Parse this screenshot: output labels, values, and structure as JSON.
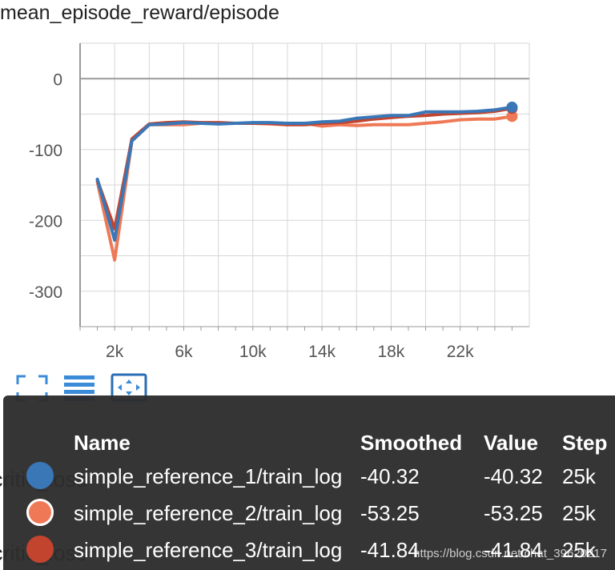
{
  "chart_data": {
    "type": "line",
    "title": "mean_episode_reward/episode",
    "xlim": [
      0,
      26000
    ],
    "ylim": [
      -350,
      50
    ],
    "x_ticks": [
      2000,
      6000,
      10000,
      14000,
      18000,
      22000
    ],
    "x_tick_labels": [
      "2k",
      "6k",
      "10k",
      "14k",
      "18k",
      "22k"
    ],
    "y_ticks": [
      0,
      -100,
      -200,
      -300
    ],
    "y_tick_labels": [
      "0",
      "-100",
      "-200",
      "-300"
    ],
    "grid": true,
    "x": [
      1000,
      2000,
      3000,
      4000,
      5000,
      6000,
      7000,
      8000,
      9000,
      10000,
      11000,
      12000,
      13000,
      14000,
      15000,
      16000,
      17000,
      18000,
      19000,
      20000,
      21000,
      22000,
      23000,
      24000,
      25000
    ],
    "series": [
      {
        "name": "simple_reference_1/train_log",
        "color": "#3a77b7",
        "values": [
          -142,
          -228,
          -88,
          -65,
          -64,
          -62,
          -63,
          -64,
          -63,
          -62,
          -62,
          -63,
          -63,
          -61,
          -60,
          -56,
          -54,
          -52,
          -52,
          -47,
          -47,
          -47,
          -46,
          -44,
          -40.32
        ]
      },
      {
        "name": "simple_reference_2/train_log",
        "color": "#ef7956",
        "values": [
          -146,
          -256,
          -88,
          -65,
          -65,
          -65,
          -63,
          -63,
          -63,
          -63,
          -64,
          -65,
          -63,
          -67,
          -65,
          -66,
          -65,
          -65,
          -65,
          -63,
          -61,
          -58,
          -57,
          -57,
          -53.25
        ]
      },
      {
        "name": "simple_reference_3/train_log",
        "color": "#c3442e",
        "values": [
          -143,
          -212,
          -85,
          -64,
          -62,
          -61,
          -62,
          -62,
          -63,
          -63,
          -63,
          -65,
          -65,
          -63,
          -62,
          -60,
          -57,
          -55,
          -53,
          -52,
          -50,
          -49,
          -48,
          -46,
          -41.84
        ]
      }
    ]
  },
  "toolbar": {
    "buttons": [
      {
        "icon": "fullscreen-icon"
      },
      {
        "icon": "data-table-icon"
      },
      {
        "icon": "fit-domain-icon"
      }
    ]
  },
  "background_labels": [
    "critic_loss",
    "critic_loss"
  ],
  "tooltip": {
    "headers": {
      "name": "Name",
      "smoothed": "Smoothed",
      "value": "Value",
      "step": "Step"
    },
    "rows": [
      {
        "name": "simple_reference_1/train_log",
        "smoothed": "-40.32",
        "value": "-40.32",
        "step": "25k",
        "color": "#3a77b7",
        "ring": false
      },
      {
        "name": "simple_reference_2/train_log",
        "smoothed": "-53.25",
        "value": "-53.25",
        "step": "25k",
        "color": "#ef7956",
        "ring": true
      },
      {
        "name": "simple_reference_3/train_log",
        "smoothed": "-41.84",
        "value": "-41.84",
        "step": "25k",
        "color": "#c3442e",
        "ring": false
      }
    ],
    "watermark": "https://blog.csdn.net/chat_39620217"
  }
}
